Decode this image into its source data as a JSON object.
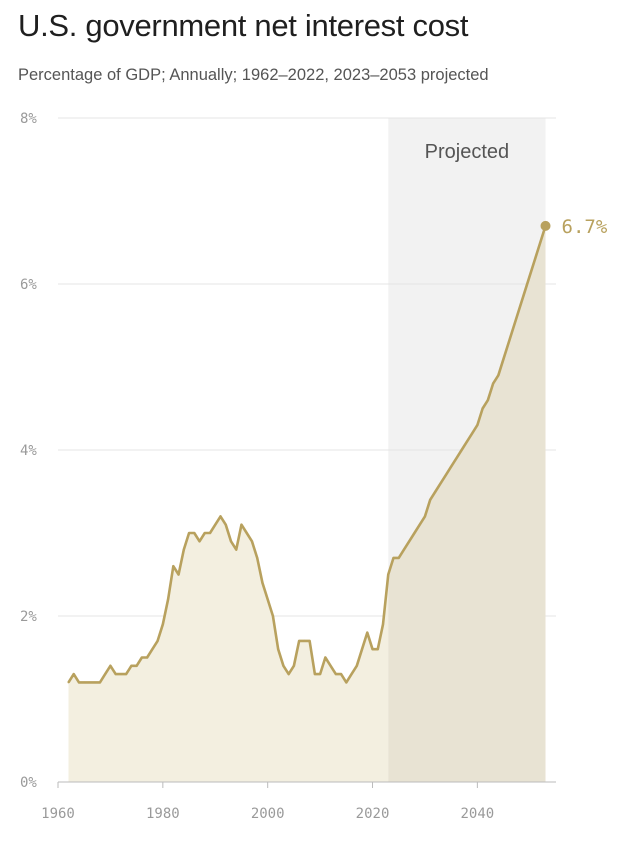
{
  "header": {
    "title": "U.S. government net interest cost",
    "subtitle": "Percentage of GDP; Annually; 1962–2022, 2023–2053 projected"
  },
  "colors": {
    "line": "#b8a15e",
    "area_historical": "#f3efe0",
    "area_projected": "#e8e3d3",
    "projected_band": "#f2f2f2",
    "grid": "#e4e4e4",
    "axis": "#bbbbbb",
    "tick_text": "#9a9a9a"
  },
  "chart_data": {
    "type": "area",
    "title": "U.S. government net interest cost",
    "subtitle": "Percentage of GDP; Annually; 1962–2022, 2023–2053 projected",
    "xlabel": "",
    "ylabel": "",
    "xlim": [
      1960,
      2055
    ],
    "ylim": [
      0,
      8
    ],
    "x_ticks": [
      1960,
      1980,
      2000,
      2020,
      2040
    ],
    "y_ticks": [
      0,
      2,
      4,
      6,
      8
    ],
    "y_tick_labels": [
      "0%",
      "2%",
      "4%",
      "6%",
      "8%"
    ],
    "grid": "horizontal",
    "projected_region": {
      "label": "Projected",
      "start": 2023,
      "end": 2053
    },
    "end_label": "6.7%",
    "series": [
      {
        "x": [
          1962,
          1963,
          1964,
          1965,
          1966,
          1967,
          1968,
          1969,
          1970,
          1971,
          1972,
          1973,
          1974,
          1975,
          1976,
          1977,
          1978,
          1979,
          1980,
          1981,
          1982,
          1983,
          1984,
          1985,
          1986,
          1987,
          1988,
          1989,
          1990,
          1991,
          1992,
          1993,
          1994,
          1995,
          1996,
          1997,
          1998,
          1999,
          2000,
          2001,
          2002,
          2003,
          2004,
          2005,
          2006,
          2007,
          2008,
          2009,
          2010,
          2011,
          2012,
          2013,
          2014,
          2015,
          2016,
          2017,
          2018,
          2019,
          2020,
          2021,
          2022,
          2023,
          2024,
          2025,
          2026,
          2027,
          2028,
          2029,
          2030,
          2031,
          2032,
          2033,
          2034,
          2035,
          2036,
          2037,
          2038,
          2039,
          2040,
          2041,
          2042,
          2043,
          2044,
          2045,
          2046,
          2047,
          2048,
          2049,
          2050,
          2051,
          2052,
          2053
        ],
        "values": [
          1.2,
          1.3,
          1.2,
          1.2,
          1.2,
          1.2,
          1.2,
          1.3,
          1.4,
          1.3,
          1.3,
          1.3,
          1.4,
          1.4,
          1.5,
          1.5,
          1.6,
          1.7,
          1.9,
          2.2,
          2.6,
          2.5,
          2.8,
          3.0,
          3.0,
          2.9,
          3.0,
          3.0,
          3.1,
          3.2,
          3.1,
          2.9,
          2.8,
          3.1,
          3.0,
          2.9,
          2.7,
          2.4,
          2.2,
          2.0,
          1.6,
          1.4,
          1.3,
          1.4,
          1.7,
          1.7,
          1.7,
          1.3,
          1.3,
          1.5,
          1.4,
          1.3,
          1.3,
          1.2,
          1.3,
          1.4,
          1.6,
          1.8,
          1.6,
          1.6,
          1.9,
          2.5,
          2.7,
          2.7,
          2.8,
          2.9,
          3.0,
          3.1,
          3.2,
          3.4,
          3.5,
          3.6,
          3.7,
          3.8,
          3.9,
          4.0,
          4.1,
          4.2,
          4.3,
          4.5,
          4.6,
          4.8,
          4.9,
          5.1,
          5.3,
          5.5,
          5.7,
          5.9,
          6.1,
          6.3,
          6.5,
          6.7
        ]
      }
    ]
  }
}
